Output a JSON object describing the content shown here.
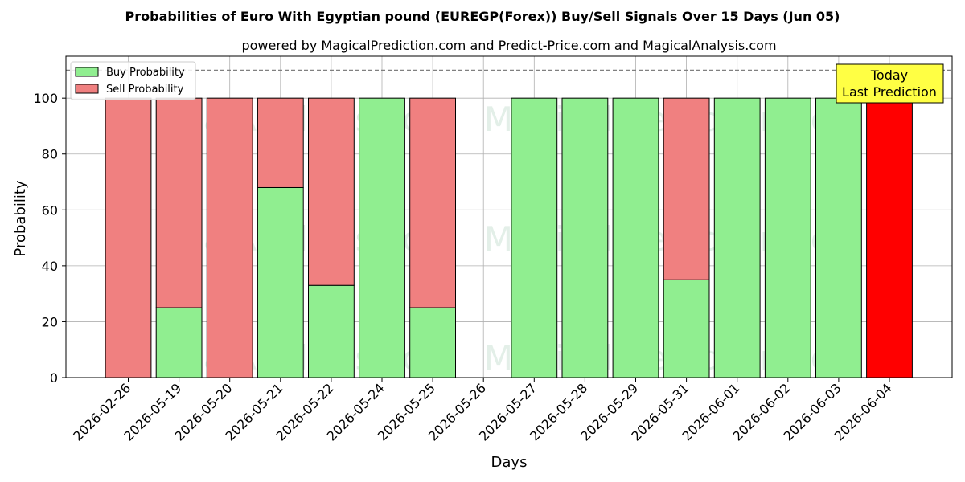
{
  "chart_data": {
    "type": "bar",
    "stacked": true,
    "title": "Probabilities of Euro With Egyptian pound (EUREGP(Forex)) Buy/Sell Signals Over 15 Days (Jun 05)",
    "subtitle": "powered by MagicalPrediction.com and Predict-Price.com and MagicalAnalysis.com",
    "xlabel": "Days",
    "ylabel": "Probability",
    "ylim": [
      0,
      115
    ],
    "yticks": [
      0,
      20,
      40,
      60,
      80,
      100
    ],
    "grid": true,
    "legend_position": "top-left",
    "reference_line": 110,
    "categories": [
      "2026-02-26",
      "2026-05-19",
      "2026-05-20",
      "2026-05-21",
      "2026-05-22",
      "2026-05-24",
      "2026-05-25",
      "2026-05-26",
      "2026-05-27",
      "2026-05-28",
      "2026-05-29",
      "2026-05-31",
      "2026-06-01",
      "2026-06-02",
      "2026-06-03",
      "2026-06-04"
    ],
    "series": [
      {
        "name": "Buy Probability",
        "color": "#90ee90",
        "values": [
          0,
          25,
          0,
          68,
          33,
          100,
          25,
          0,
          100,
          100,
          100,
          35,
          100,
          100,
          100,
          0
        ]
      },
      {
        "name": "Sell Probability",
        "color": "#f08080",
        "values": [
          100,
          75,
          100,
          32,
          67,
          0,
          75,
          0,
          0,
          0,
          0,
          65,
          0,
          0,
          0,
          100
        ]
      }
    ],
    "highlight": {
      "index": 15,
      "color": "#ff0000"
    },
    "annotation": {
      "lines": [
        "Today",
        "Last Prediction"
      ],
      "color": "#ffff44"
    },
    "watermarks": [
      "MagicalAnalysis.com",
      "MagicalPrediction.com"
    ]
  }
}
